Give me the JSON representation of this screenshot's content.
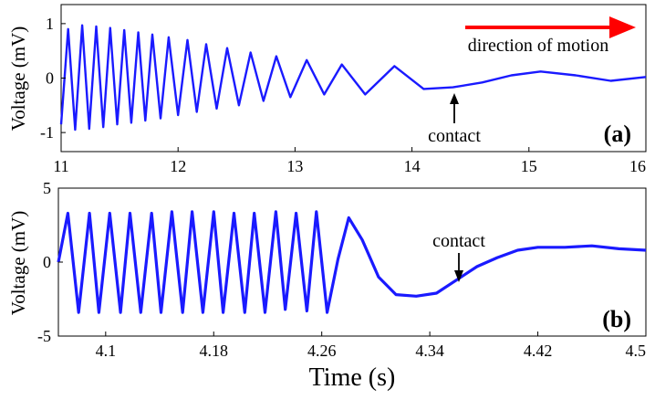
{
  "chart_data": [
    {
      "type": "line",
      "panel_label": "(a)",
      "ylabel": "Voltage (mV)",
      "xlim": [
        11,
        16
      ],
      "ylim": [
        -1.35,
        1.35
      ],
      "xticks": [
        11,
        12,
        13,
        14,
        15,
        16
      ],
      "xtick_labels": [
        "11",
        "12",
        "13",
        "14",
        "15",
        "16"
      ],
      "yticks": [
        1,
        0,
        -1
      ],
      "ytick_labels": [
        "1",
        "0",
        "-1"
      ],
      "grid": false,
      "series": [
        {
          "color": "#1a1aff",
          "x": [
            11.0,
            11.06,
            11.12,
            11.18,
            11.24,
            11.3,
            11.36,
            11.42,
            11.48,
            11.54,
            11.6,
            11.66,
            11.72,
            11.78,
            11.85,
            11.92,
            12.0,
            12.08,
            12.16,
            12.24,
            12.33,
            12.42,
            12.52,
            12.62,
            12.73,
            12.84,
            12.96,
            13.1,
            13.25,
            13.4,
            13.6,
            13.85,
            14.1,
            14.35,
            14.6,
            14.85,
            15.1,
            15.4,
            15.7,
            16.0
          ],
          "values": [
            -0.85,
            0.9,
            -0.95,
            0.97,
            -0.93,
            0.95,
            -0.9,
            0.92,
            -0.85,
            0.88,
            -0.82,
            0.84,
            -0.78,
            0.8,
            -0.74,
            0.75,
            -0.68,
            0.7,
            -0.62,
            0.62,
            -0.56,
            0.55,
            -0.5,
            0.47,
            -0.42,
            0.4,
            -0.35,
            0.33,
            -0.3,
            0.25,
            -0.3,
            0.22,
            -0.2,
            -0.17,
            -0.08,
            0.05,
            0.12,
            0.05,
            -0.05,
            0.02
          ]
        }
      ],
      "annotations": [
        {
          "text": "direction of motion",
          "arrow_color": "#ff0000",
          "position": "top-right"
        },
        {
          "text": "contact",
          "x": 14.34,
          "y": -0.2
        }
      ]
    },
    {
      "type": "line",
      "panel_label": "(b)",
      "ylabel": "Voltage (mV)",
      "xlabel": "Time (s)",
      "xlim": [
        4.065,
        4.5
      ],
      "ylim": [
        -5,
        5
      ],
      "xticks": [
        4.1,
        4.18,
        4.26,
        4.34,
        4.42,
        4.5
      ],
      "xtick_labels": [
        "4.1",
        "4.18",
        "4.26",
        "4.34",
        "4.42",
        "4.5"
      ],
      "yticks": [
        5,
        0,
        -5
      ],
      "ytick_labels": [
        "5",
        "0",
        "-5"
      ],
      "grid": false,
      "series": [
        {
          "color": "#1a1aff",
          "x": [
            4.065,
            4.072,
            4.08,
            4.088,
            4.095,
            4.103,
            4.111,
            4.118,
            4.126,
            4.134,
            4.141,
            4.149,
            4.157,
            4.164,
            4.172,
            4.18,
            4.187,
            4.195,
            4.203,
            4.21,
            4.218,
            4.226,
            4.233,
            4.241,
            4.249,
            4.256,
            4.264,
            4.272,
            4.28,
            4.29,
            4.302,
            4.315,
            4.33,
            4.345,
            4.36,
            4.375,
            4.39,
            4.405,
            4.42,
            4.44,
            4.46,
            4.48,
            4.5
          ],
          "values": [
            0.0,
            3.3,
            -3.4,
            3.3,
            -3.4,
            3.3,
            -3.4,
            3.3,
            -3.4,
            3.3,
            -3.4,
            3.4,
            -3.4,
            3.4,
            -3.4,
            3.4,
            -3.4,
            3.3,
            -3.4,
            3.3,
            -3.4,
            3.4,
            -3.2,
            3.3,
            -3.3,
            3.4,
            -3.4,
            0.2,
            3.0,
            1.5,
            -1.0,
            -2.2,
            -2.3,
            -2.1,
            -1.2,
            -0.3,
            0.3,
            0.8,
            1.0,
            1.0,
            1.1,
            0.9,
            0.8
          ]
        }
      ],
      "annotations": [
        {
          "text": "contact",
          "x": 4.362,
          "y": -1.9
        }
      ]
    }
  ]
}
